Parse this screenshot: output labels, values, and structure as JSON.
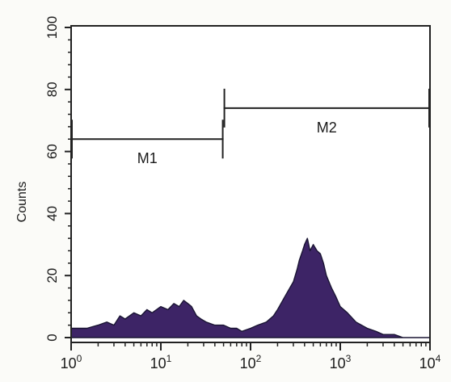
{
  "chart_data": {
    "type": "area",
    "title": "",
    "xlabel": "",
    "ylabel": "Counts",
    "x_scale": "log",
    "xlim": [
      1,
      10000
    ],
    "ylim": [
      0,
      100
    ],
    "x_ticks": [
      {
        "value": 1,
        "base": "10",
        "exp": "0"
      },
      {
        "value": 10,
        "base": "10",
        "exp": "1"
      },
      {
        "value": 100,
        "base": "10",
        "exp": "2"
      },
      {
        "value": 1000,
        "base": "10",
        "exp": "3"
      },
      {
        "value": 10000,
        "base": "10",
        "exp": "4"
      }
    ],
    "y_ticks": [
      "0",
      "20",
      "40",
      "60",
      "80",
      "100"
    ],
    "grid": false,
    "fill_color": "#3d2466",
    "markers": [
      {
        "name": "M1",
        "x_start": 1,
        "x_end": 50,
        "y": 64
      },
      {
        "name": "M2",
        "x_start": 50,
        "x_end": 10000,
        "y": 74
      }
    ],
    "series": [
      {
        "x": [
          1,
          1.5,
          2,
          2.5,
          3,
          3.5,
          4,
          5,
          6,
          7,
          8,
          10,
          12,
          14,
          16,
          18,
          20,
          22,
          25,
          28,
          32,
          40,
          50,
          60,
          70,
          80,
          100,
          120,
          150,
          180,
          200,
          250,
          300,
          330,
          350,
          380,
          400,
          430,
          460,
          500,
          550,
          600,
          650,
          700,
          800,
          900,
          1000,
          1200,
          1500,
          2000,
          2500,
          3000,
          4000,
          5000,
          6000,
          7000,
          8000,
          10000
        ],
        "y": [
          3,
          3,
          4,
          5,
          4,
          7,
          6,
          8,
          7,
          9,
          8,
          10,
          9,
          11,
          10,
          12,
          11,
          10,
          7,
          6,
          5,
          4,
          4,
          3,
          3,
          2,
          3,
          4,
          5,
          7,
          9,
          14,
          18,
          22,
          25,
          28,
          30,
          32,
          28,
          30,
          28,
          27,
          24,
          20,
          16,
          13,
          10,
          8,
          5,
          3,
          2,
          1,
          1,
          0,
          0,
          0,
          0,
          0
        ]
      }
    ]
  }
}
